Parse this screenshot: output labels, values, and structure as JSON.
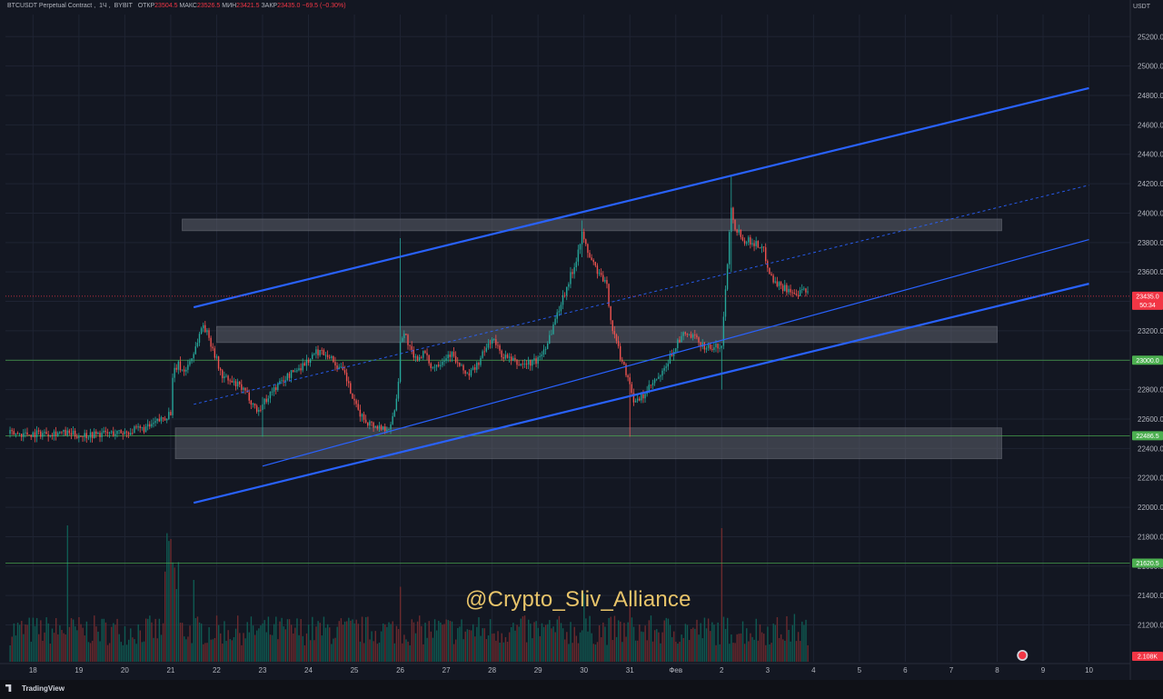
{
  "chart_data": {
    "type": "candlestick",
    "symbol": "BTCUSDT Perpetual Contract",
    "timeframe": "1Ч",
    "exchange": "BYBIT",
    "ohlc_header": [
      {
        "label": "ОТКР",
        "value": "23504.5"
      },
      {
        "label": "МАКС",
        "value": "23526.5"
      },
      {
        "label": "МИН",
        "value": "23421.5"
      },
      {
        "label": "ЗАКР",
        "value": "23435.0"
      }
    ],
    "change_text": "−69.5 (−0.30%)",
    "currency": "USDT",
    "ylim": [
      20950,
      25350
    ],
    "y_ticks": [
      "21200.0",
      "21400.0",
      "21600.0",
      "21800.0",
      "22000.0",
      "22200.0",
      "22400.0",
      "22600.0",
      "22800.0",
      "23000.0",
      "23200.0",
      "23400.0",
      "23600.0",
      "23800.0",
      "24000.0",
      "24200.0",
      "24400.0",
      "24600.0",
      "24800.0",
      "25000.0",
      "25200.0"
    ],
    "x_ticks": [
      "18",
      "19",
      "20",
      "21",
      "22",
      "23",
      "24",
      "25",
      "26",
      "27",
      "28",
      "29",
      "30",
      "31",
      "Фев",
      "2",
      "3",
      "4",
      "5",
      "6",
      "7",
      "8",
      "9",
      "10"
    ],
    "horizontal_levels": [
      {
        "price": 23000.0,
        "label": "23000.0"
      },
      {
        "price": 22486.5,
        "label": "22486.5"
      },
      {
        "price": 21620.5,
        "label": "21620.5"
      }
    ],
    "current_price": {
      "price": 23435.0,
      "label": "23435.0",
      "countdown": "50:34"
    },
    "volume_label": "2.108K",
    "zones": [
      {
        "x_from": 21.25,
        "x_to": 39.1,
        "y_from": 23880,
        "y_to": 23960
      },
      {
        "x_from": 22.0,
        "x_to": 39.0,
        "y_from": 23120,
        "y_to": 23230
      },
      {
        "x_from": 21.1,
        "x_to": 39.1,
        "y_from": 22330,
        "y_to": 22540
      }
    ],
    "channel_lines": [
      {
        "x1": 21.5,
        "y1": 23360,
        "x2": 41.0,
        "y2": 24850,
        "style": "upper"
      },
      {
        "x1": 21.5,
        "y1": 22030,
        "x2": 41.0,
        "y2": 23520,
        "style": "lower"
      },
      {
        "x1": 23.0,
        "y1": 22280,
        "x2": 41.0,
        "y2": 23820,
        "style": "inner"
      },
      {
        "x1": 21.5,
        "y1": 22700,
        "x2": 41.0,
        "y2": 24190,
        "style": "median"
      }
    ],
    "series_path": [
      [
        18.0,
        22500
      ],
      [
        18.5,
        22510
      ],
      [
        19.0,
        22490
      ],
      [
        19.5,
        22500
      ],
      [
        20.0,
        22510
      ],
      [
        20.5,
        22540
      ],
      [
        20.9,
        22620
      ],
      [
        21.0,
        22650
      ],
      [
        21.05,
        22900
      ],
      [
        21.15,
        22970
      ],
      [
        21.3,
        22920
      ],
      [
        21.5,
        23050
      ],
      [
        21.7,
        23250
      ],
      [
        21.9,
        23100
      ],
      [
        22.1,
        22900
      ],
      [
        22.3,
        22850
      ],
      [
        22.5,
        22820
      ],
      [
        22.7,
        22750
      ],
      [
        22.9,
        22650
      ],
      [
        23.0,
        22700
      ],
      [
        23.2,
        22790
      ],
      [
        23.5,
        22880
      ],
      [
        23.8,
        22950
      ],
      [
        24.0,
        23000
      ],
      [
        24.2,
        23060
      ],
      [
        24.4,
        23050
      ],
      [
        24.6,
        22970
      ],
      [
        24.8,
        22900
      ],
      [
        25.0,
        22700
      ],
      [
        25.2,
        22600
      ],
      [
        25.4,
        22560
      ],
      [
        25.6,
        22540
      ],
      [
        25.8,
        22550
      ],
      [
        25.95,
        22800
      ],
      [
        26.0,
        23150
      ],
      [
        26.1,
        23180
      ],
      [
        26.3,
        23000
      ],
      [
        26.5,
        23050
      ],
      [
        26.7,
        22950
      ],
      [
        26.9,
        23000
      ],
      [
        27.1,
        23050
      ],
      [
        27.3,
        22950
      ],
      [
        27.5,
        22900
      ],
      [
        27.7,
        22980
      ],
      [
        27.9,
        23100
      ],
      [
        28.0,
        23150
      ],
      [
        28.2,
        23040
      ],
      [
        28.4,
        23000
      ],
      [
        28.6,
        22970
      ],
      [
        28.8,
        22980
      ],
      [
        29.0,
        23000
      ],
      [
        29.2,
        23120
      ],
      [
        29.4,
        23300
      ],
      [
        29.6,
        23480
      ],
      [
        29.8,
        23650
      ],
      [
        29.95,
        23860
      ],
      [
        30.1,
        23720
      ],
      [
        30.3,
        23600
      ],
      [
        30.5,
        23500
      ],
      [
        30.6,
        23240
      ],
      [
        30.8,
        23020
      ],
      [
        31.0,
        22850
      ],
      [
        31.1,
        22700
      ],
      [
        31.3,
        22760
      ],
      [
        31.5,
        22840
      ],
      [
        31.7,
        22900
      ],
      [
        32.0,
        23100
      ],
      [
        32.2,
        23180
      ],
      [
        32.4,
        23150
      ],
      [
        32.6,
        23100
      ],
      [
        32.8,
        23080
      ],
      [
        33.0,
        23100
      ],
      [
        33.1,
        23550
      ],
      [
        33.2,
        24050
      ],
      [
        33.3,
        23900
      ],
      [
        33.5,
        23820
      ],
      [
        33.7,
        23800
      ],
      [
        33.9,
        23760
      ],
      [
        34.0,
        23650
      ],
      [
        34.1,
        23550
      ],
      [
        34.3,
        23500
      ],
      [
        34.5,
        23480
      ],
      [
        34.6,
        23420
      ],
      [
        34.8,
        23480
      ],
      [
        34.9,
        23435
      ]
    ],
    "wick_extremes": [
      {
        "x": 26.0,
        "high": 23830,
        "low": 22950
      },
      {
        "x": 29.95,
        "high": 23950,
        "low": 23700
      },
      {
        "x": 33.2,
        "high": 24260,
        "low": 23600
      },
      {
        "x": 31.0,
        "high": 22900,
        "low": 22480
      },
      {
        "x": 33.0,
        "high": 23050,
        "low": 22800
      },
      {
        "x": 23.0,
        "high": 22750,
        "low": 22480
      }
    ],
    "volume_spikes": [
      {
        "x": 18.75,
        "v": 1.0
      },
      {
        "x": 21.0,
        "v": 0.9
      },
      {
        "x": 21.5,
        "v": 0.6
      },
      {
        "x": 26.0,
        "v": 0.55
      },
      {
        "x": 30.0,
        "v": 0.5
      },
      {
        "x": 33.0,
        "v": 0.98
      },
      {
        "x": 31.0,
        "v": 0.45
      },
      {
        "x": 34.6,
        "v": 0.35
      }
    ]
  },
  "colors": {
    "background": "#131722",
    "grid": "#1f2433",
    "up": "#26a69a",
    "down": "#ef5350",
    "up_volume": "#0f5a52",
    "down_volume": "#6b2a2e",
    "channel": "#2962ff",
    "zone": "#5d606b",
    "level": "#4caf50",
    "level_tag": "#4caf50",
    "price_tag": "#f23645",
    "watermark": "#e8c46a"
  },
  "watermark": "@Crypto_Sliv_Alliance",
  "footer": {
    "brand": "TradingView"
  }
}
